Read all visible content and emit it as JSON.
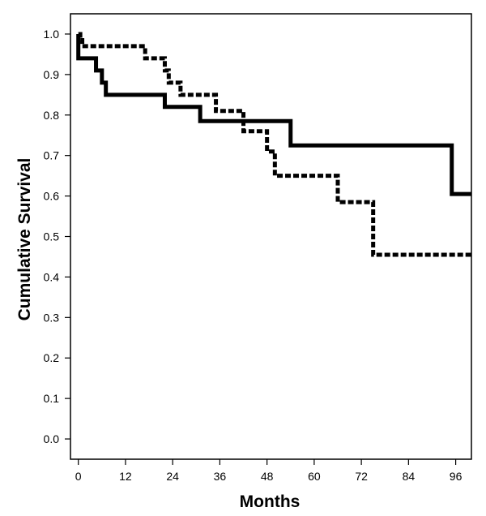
{
  "chart_data": {
    "type": "line",
    "subtype": "step (Kaplan-Meier survival curves)",
    "title": "",
    "xlabel": "Months",
    "ylabel": "Cumulative Survival",
    "xlim": [
      -2,
      100
    ],
    "ylim": [
      -0.05,
      1.05
    ],
    "xticks": [
      0,
      12,
      24,
      36,
      48,
      60,
      72,
      84,
      96
    ],
    "yticks": [
      0.0,
      0.1,
      0.2,
      0.3,
      0.4,
      0.5,
      0.6,
      0.7,
      0.8,
      0.9,
      1.0
    ],
    "ytick_labels": [
      "0.0",
      "0.1",
      "0.2",
      "0.3",
      "0.4",
      "0.5",
      "0.6",
      "0.7",
      "0.8",
      "0.9",
      "1.0"
    ],
    "grid": false,
    "legend": "none",
    "series": [
      {
        "line_style": "solid",
        "color": "#000000",
        "x": [
          0,
          0,
          4.5,
          6,
          7,
          22,
          31,
          54,
          95,
          100
        ],
        "y": [
          1.0,
          0.94,
          0.91,
          0.88,
          0.85,
          0.82,
          0.785,
          0.725,
          0.605,
          0.605
        ]
      },
      {
        "line_style": "dashed",
        "color": "#000000",
        "x": [
          0,
          0.5,
          1,
          17,
          22,
          23,
          26,
          28,
          35,
          42,
          48,
          50,
          66,
          75,
          100
        ],
        "y": [
          1.0,
          0.985,
          0.97,
          0.94,
          0.91,
          0.88,
          0.85,
          0.85,
          0.81,
          0.76,
          0.71,
          0.65,
          0.585,
          0.455,
          0.455
        ]
      }
    ]
  }
}
